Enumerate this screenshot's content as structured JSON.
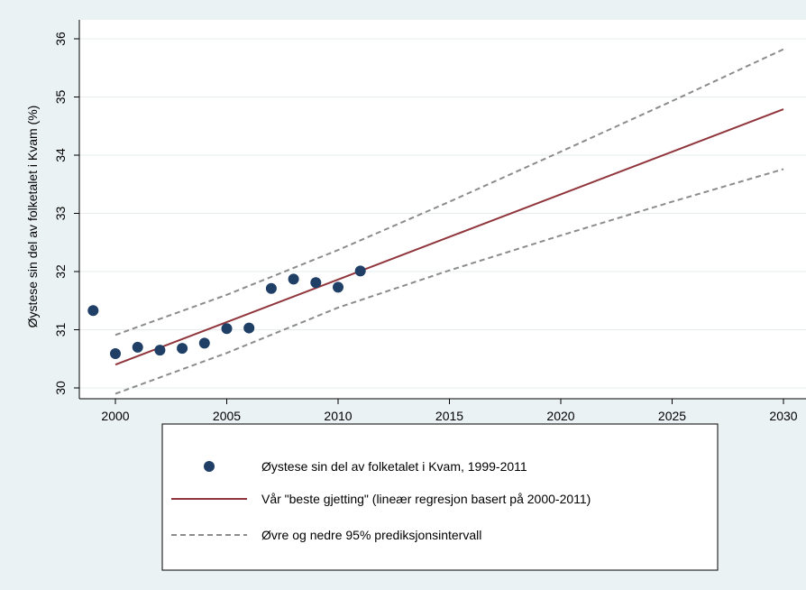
{
  "chart_data": {
    "type": "scatter",
    "title": "",
    "xlabel": "",
    "ylabel": "Øystese sin del av folketalet i Kvam (%)",
    "xlim": [
      1999,
      2030
    ],
    "ylim": [
      30,
      36
    ],
    "x_ticks": [
      2000,
      2005,
      2010,
      2015,
      2020,
      2025,
      2030
    ],
    "y_ticks": [
      30,
      31,
      32,
      33,
      34,
      35,
      36
    ],
    "grid": true,
    "legend_position": "bottom",
    "series": [
      {
        "name": "Øystese sin del av folketalet i Kvam, 1999-2011",
        "kind": "scatter",
        "color": "#1f3f66",
        "x": [
          1999,
          2000,
          2001,
          2002,
          2003,
          2004,
          2005,
          2006,
          2007,
          2008,
          2009,
          2010,
          2011
        ],
        "y": [
          31.33,
          30.59,
          30.7,
          30.65,
          30.68,
          30.77,
          31.02,
          31.03,
          31.71,
          31.87,
          31.81,
          31.73,
          32.01
        ]
      },
      {
        "name": "Vår \"beste gjetting\" (lineær regresjon basert på 2000-2011)",
        "kind": "line",
        "color": "#90353b",
        "x": [
          2000,
          2030
        ],
        "y": [
          30.4,
          34.79
        ]
      },
      {
        "name": "Øvre og nedre 95% prediksjonsintervall",
        "kind": "dashed",
        "color": "#8c8c8c",
        "x": [
          2000,
          2005,
          2010,
          2015,
          2020,
          2025,
          2030
        ],
        "y_upper": [
          30.91,
          31.6,
          32.37,
          33.2,
          34.06,
          34.93,
          35.82
        ],
        "y_lower": [
          29.9,
          30.6,
          31.38,
          32.02,
          32.62,
          33.2,
          33.76
        ]
      }
    ]
  }
}
